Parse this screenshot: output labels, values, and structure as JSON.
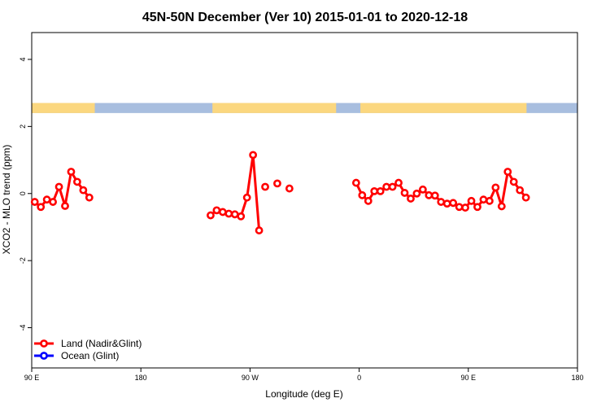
{
  "chart_data": {
    "type": "line",
    "title": "45N-50N December (Ver 10)   2015-01-01 to 2020-12-18",
    "xlabel": "Longitude (deg E)",
    "ylabel": "XCO2 - MLO trend (ppm)",
    "x_ticks": [
      {
        "value": 90,
        "label": "90 E"
      },
      {
        "value": 180,
        "label": "180"
      },
      {
        "value": 270,
        "label": "90 W"
      },
      {
        "value": 360,
        "label": "0"
      },
      {
        "value": 450,
        "label": "90 E"
      },
      {
        "value": 540,
        "label": "180"
      }
    ],
    "xlim": [
      90,
      540
    ],
    "ylim": [
      -5.2,
      4.8
    ],
    "y_ticks": [
      -4,
      -2,
      0,
      2,
      4
    ],
    "colors": {
      "land": "#ff0000",
      "ocean": "#0000ff",
      "land_mask": "#fbd77f",
      "ocean_mask": "#a8bedf"
    },
    "land_mask_band": {
      "y": [
        2.4,
        2.7
      ],
      "land_ranges": [
        [
          90,
          142
        ],
        [
          239,
          341
        ],
        [
          361,
          498
        ]
      ]
    },
    "series": [
      {
        "name": "Land (Nadir&Glint)",
        "color": "#ff0000",
        "segments": [
          [
            [
              92.5,
              -0.25
            ],
            [
              97.5,
              -0.4
            ],
            [
              102.5,
              -0.18
            ],
            [
              107.5,
              -0.25
            ],
            [
              112.5,
              0.2
            ],
            [
              117.5,
              -0.37
            ],
            [
              122.5,
              0.65
            ],
            [
              127.5,
              0.35
            ],
            [
              132.5,
              0.1
            ],
            [
              137.5,
              -0.12
            ]
          ],
          [
            [
              237.5,
              -0.65
            ],
            [
              242.5,
              -0.5
            ],
            [
              247.5,
              -0.55
            ],
            [
              252.5,
              -0.6
            ],
            [
              257.5,
              -0.62
            ],
            [
              262.5,
              -0.68
            ],
            [
              267.5,
              -0.12
            ],
            [
              272.5,
              1.15
            ],
            [
              277.5,
              -1.1
            ]
          ],
          [
            [
              282.5,
              0.2
            ]
          ],
          [
            [
              292.5,
              0.3
            ]
          ],
          [
            [
              302.5,
              0.15
            ]
          ],
          [
            [
              357.5,
              0.32
            ],
            [
              362.5,
              -0.05
            ],
            [
              367.5,
              -0.22
            ],
            [
              372.5,
              0.07
            ],
            [
              377.5,
              0.07
            ],
            [
              382.5,
              0.2
            ],
            [
              387.5,
              0.2
            ],
            [
              392.5,
              0.32
            ],
            [
              397.5,
              0.02
            ],
            [
              402.5,
              -0.15
            ],
            [
              407.5,
              0.0
            ],
            [
              412.5,
              0.12
            ],
            [
              417.5,
              -0.05
            ],
            [
              422.5,
              -0.06
            ],
            [
              427.5,
              -0.25
            ],
            [
              432.5,
              -0.3
            ],
            [
              437.5,
              -0.28
            ],
            [
              442.5,
              -0.4
            ],
            [
              447.5,
              -0.42
            ],
            [
              452.5,
              -0.22
            ],
            [
              457.5,
              -0.4
            ],
            [
              462.5,
              -0.18
            ],
            [
              467.5,
              -0.22
            ],
            [
              472.5,
              0.18
            ],
            [
              477.5,
              -0.38
            ],
            [
              482.5,
              0.65
            ],
            [
              487.5,
              0.35
            ],
            [
              492.5,
              0.1
            ],
            [
              497.5,
              -0.12
            ]
          ]
        ]
      },
      {
        "name": "Ocean (Glint)",
        "color": "#0000ff",
        "segments": []
      }
    ],
    "legend_position": "bottom-left"
  }
}
